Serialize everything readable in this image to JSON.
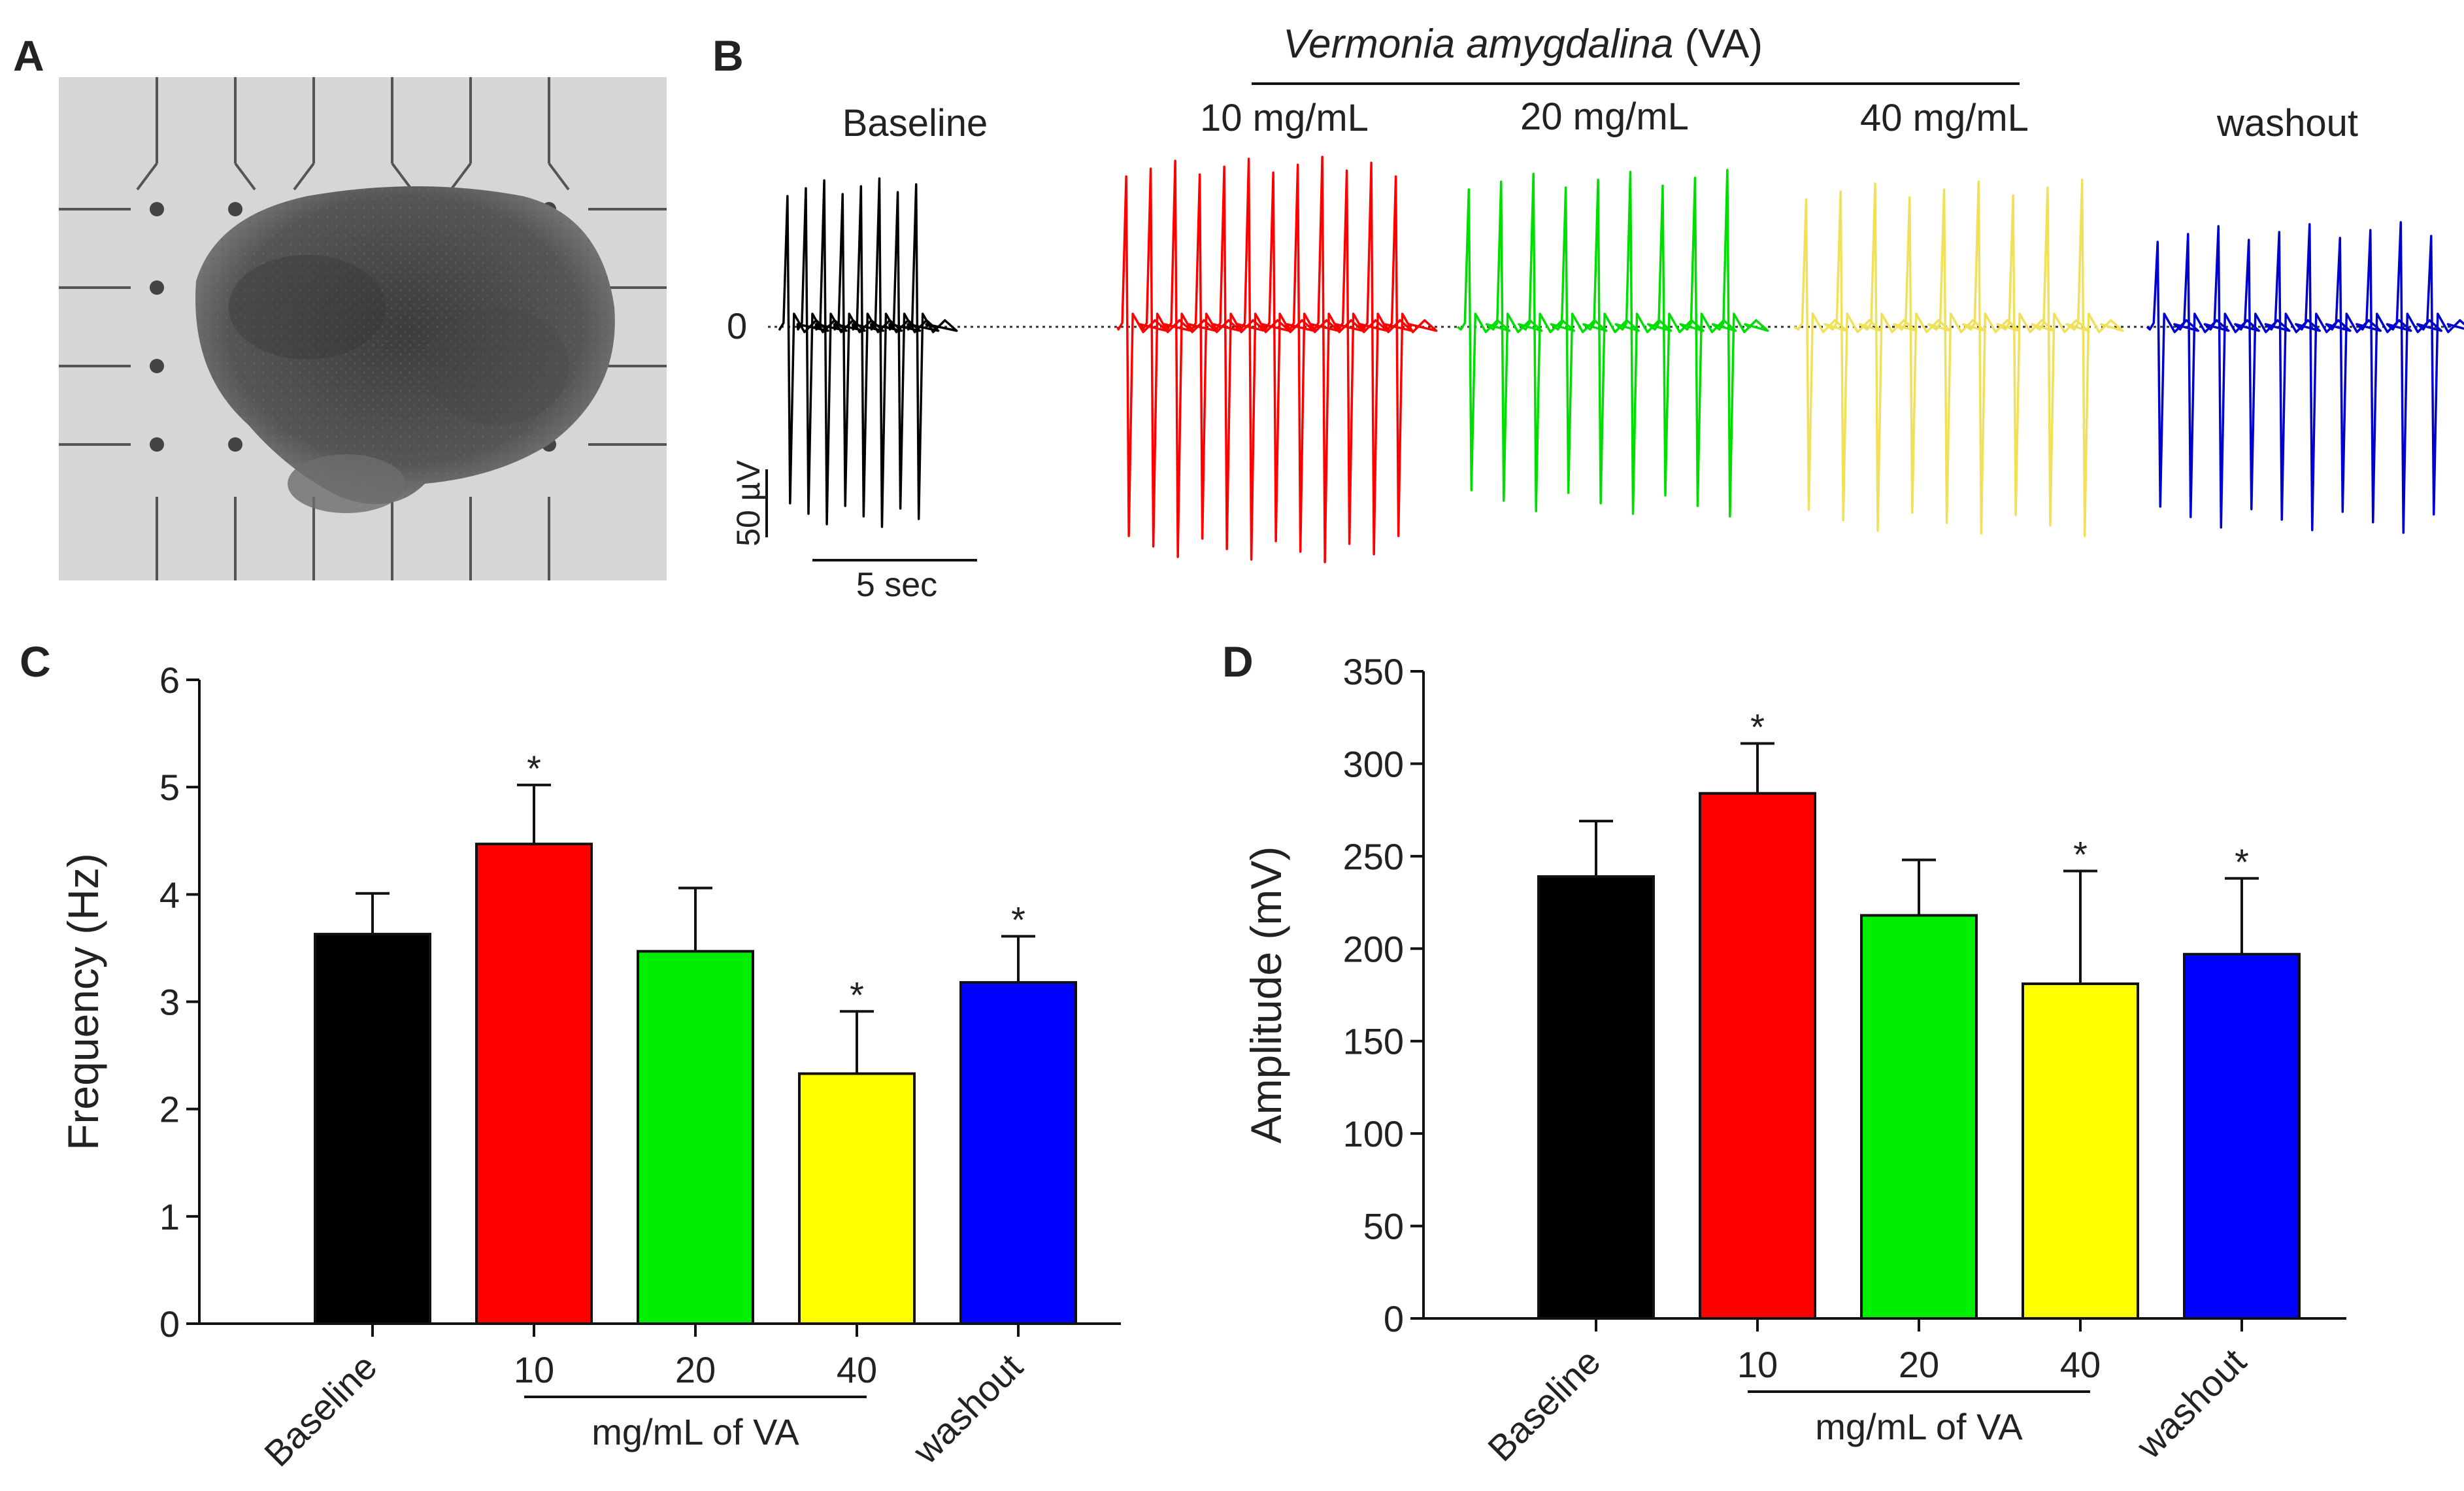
{
  "panels": {
    "A": {
      "letter": "A"
    },
    "B": {
      "letter": "B",
      "header_italic": "Vermonia amygdalina",
      "header_suffix": " (VA)",
      "conditions": [
        {
          "label": "Baseline",
          "color": "#000000"
        },
        {
          "label": "10 mg/mL",
          "color": "#ff0000"
        },
        {
          "label": "20 mg/mL",
          "color": "#00dd00"
        },
        {
          "label": "40 mg/mL",
          "color": "#f0e05a"
        },
        {
          "label": "washout",
          "color": "#0000cc"
        }
      ],
      "zero_label": "0",
      "scale_v": "50 µV",
      "scale_t": "5 sec"
    },
    "C": {
      "letter": "C"
    },
    "D": {
      "letter": "D"
    }
  },
  "chart_data": [
    {
      "type": "bar",
      "panel": "C",
      "categories": [
        "Baseline",
        "10",
        "20",
        "40",
        "washout"
      ],
      "values": [
        3.63,
        4.47,
        3.47,
        2.33,
        3.18
      ],
      "errors": [
        0.38,
        0.55,
        0.59,
        0.58,
        0.43
      ],
      "significant": [
        false,
        true,
        false,
        true,
        true
      ],
      "colors": [
        "#000000",
        "#ff0000",
        "#00ee00",
        "#ffff00",
        "#0000ff"
      ],
      "ylabel": "Frequency (Hz)",
      "group_label": "mg/mL of VA",
      "ylim": [
        0,
        6
      ],
      "yticks": [
        0,
        1,
        2,
        3,
        4,
        5,
        6
      ],
      "star": "*"
    },
    {
      "type": "bar",
      "panel": "D",
      "categories": [
        "Baseline",
        "10",
        "20",
        "40",
        "washout"
      ],
      "values": [
        239,
        284,
        218,
        181,
        197
      ],
      "errors": [
        30,
        27,
        30,
        61,
        41
      ],
      "significant": [
        false,
        true,
        false,
        true,
        true
      ],
      "colors": [
        "#000000",
        "#ff0000",
        "#00ee00",
        "#ffff00",
        "#0000ff"
      ],
      "ylabel": "Amplitude (mV)",
      "group_label": "mg/mL of VA",
      "ylim": [
        0,
        350
      ],
      "yticks": [
        0,
        50,
        100,
        150,
        200,
        250,
        300,
        350
      ],
      "star": "*"
    }
  ]
}
